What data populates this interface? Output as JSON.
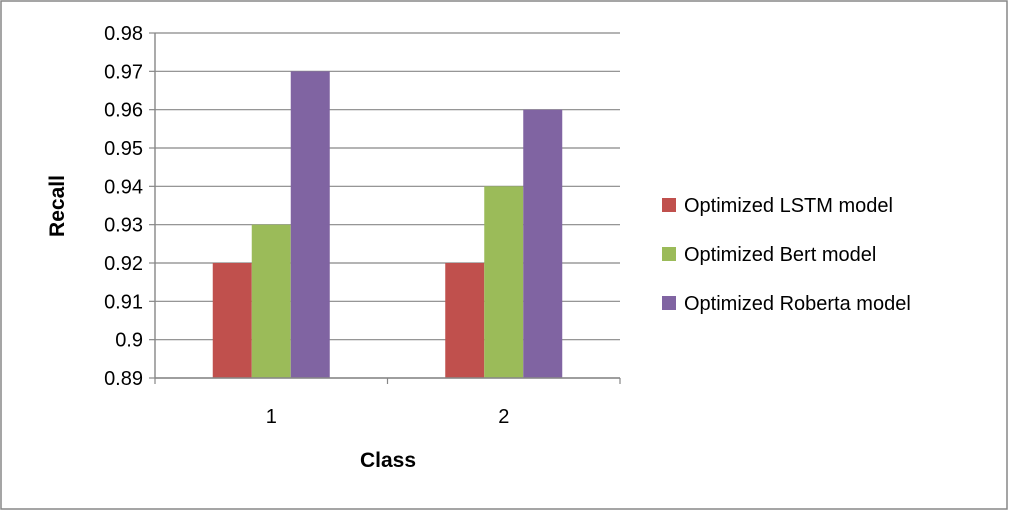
{
  "chart_data": {
    "type": "bar",
    "title": "",
    "xlabel": "Class",
    "ylabel": "Recall",
    "categories": [
      "1",
      "2"
    ],
    "ylim": [
      0.89,
      0.98
    ],
    "yticks": [
      "0.89",
      "0.9",
      "0.91",
      "0.92",
      "0.93",
      "0.94",
      "0.95",
      "0.96",
      "0.97",
      "0.98"
    ],
    "grid": true,
    "legend_position": "right",
    "series": [
      {
        "name": "Optimized LSTM model",
        "color": "#C0504D",
        "values": [
          0.92,
          0.92
        ]
      },
      {
        "name": "Optimized Bert model",
        "color": "#9BBB59",
        "values": [
          0.93,
          0.94
        ]
      },
      {
        "name": "Optimized Roberta model",
        "color": "#8064A2",
        "values": [
          0.97,
          0.96
        ]
      }
    ]
  }
}
